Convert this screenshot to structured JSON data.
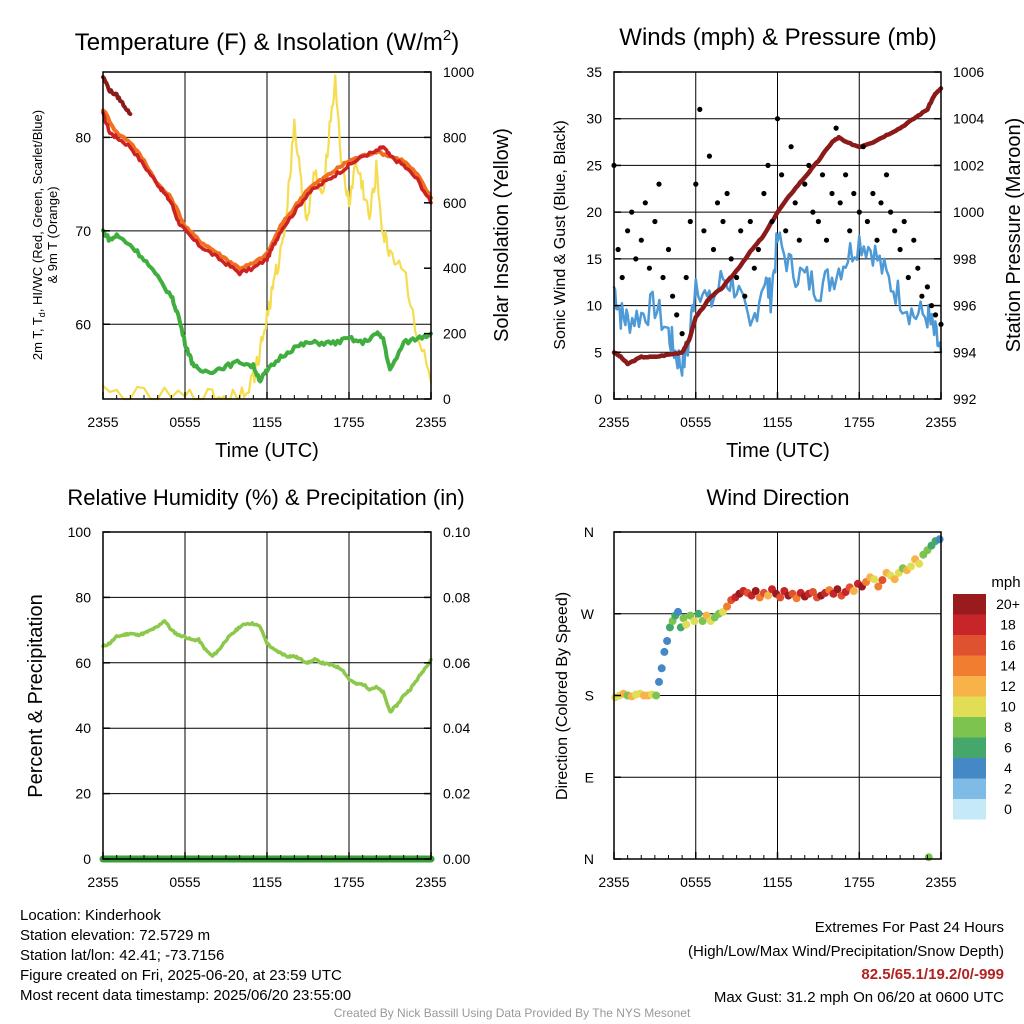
{
  "colors": {
    "maroon": "#8b1a1a",
    "red": "#cc2222",
    "orange": "#f07020",
    "scarlet": "#d83a2a",
    "green": "#3fae3f",
    "yellow": "#f5dc50",
    "blue": "#4e9ad6",
    "black": "#000000",
    "rh": "#8cc84b",
    "precip": "#3a9e3a"
  },
  "panels": {
    "temp": {
      "title_main": "Temperature (F) & Insolation (W/m",
      "title_sup": "2",
      "title_end": ")",
      "ylabel_line1": "2m T, T",
      "ylabel_sub": "d",
      "ylabel_rest": ", HI/WC (Red, Green, Scarlet/Blue)",
      "ylabel_line2": "& 9m T (Orange)",
      "y2label": "Solar Insolation (Yellow)",
      "xlabel": "Time (UTC)"
    },
    "wind": {
      "title": "Winds (mph) & Pressure (mb)",
      "ylabel": "Sonic Wind & Gust (Blue, Black)",
      "y2label": "Station Pressure (Maroon)",
      "xlabel": "Time (UTC)"
    },
    "rh": {
      "title": "Relative Humidity (%) & Precipitation (in)",
      "ylabel": "Percent & Precipitation"
    },
    "wdir": {
      "title": "Wind Direction",
      "ylabel": "Direction (Colored By Speed)",
      "legend_title": "mph"
    }
  },
  "chart_data": [
    {
      "type": "line",
      "title": "Temperature (F) & Insolation (W/m2)",
      "xlabel": "Time (UTC)",
      "ylabel": "2m T, Td, HI/WC (Red, Green, Scarlet/Blue) & 9m T (Orange)",
      "y2label": "Solar Insolation (Yellow)",
      "xticks": [
        "2355",
        "0555",
        "1155",
        "1755",
        "2355"
      ],
      "xlim": [
        0,
        24
      ],
      "ylim": [
        52,
        87
      ],
      "yticks": [
        60,
        70,
        80
      ],
      "y2lim": [
        0,
        1000
      ],
      "y2ticks": [
        0,
        200,
        400,
        600,
        800,
        1000
      ],
      "series": [
        {
          "name": "2m T",
          "color": "#cc2222",
          "axis": "left",
          "x": [
            0,
            0.5,
            1,
            2,
            3,
            4,
            4.5,
            5,
            5.5,
            6,
            7,
            8,
            9,
            10,
            11,
            12,
            12.5,
            13,
            14,
            15,
            16,
            17,
            18,
            19,
            20,
            20.5,
            21,
            22,
            23,
            24
          ],
          "y": [
            82.5,
            80.5,
            80,
            79,
            77,
            75,
            74,
            73,
            71,
            70,
            68.5,
            67.5,
            66.5,
            65.5,
            66,
            67,
            68.5,
            70,
            72,
            74,
            75,
            76,
            77,
            78,
            78.5,
            79,
            78,
            77,
            75.5,
            73
          ]
        },
        {
          "name": "9m T",
          "color": "#f07020",
          "axis": "left",
          "x": [
            0,
            1,
            2,
            3,
            4,
            5,
            6,
            7,
            8,
            9,
            10,
            11,
            12,
            13,
            14,
            15,
            16,
            17,
            18,
            19,
            20,
            21,
            22,
            23,
            24
          ],
          "y": [
            83,
            80.5,
            79.5,
            77.5,
            75,
            73.5,
            70.5,
            69,
            68,
            67,
            66,
            66.5,
            67.5,
            70.5,
            72.5,
            74.5,
            75.5,
            76.5,
            77.5,
            78,
            78.5,
            78,
            77.5,
            76,
            73.5
          ]
        },
        {
          "name": "HI/WC",
          "color": "#8b1a1a",
          "axis": "left",
          "x": [
            0,
            0.5,
            1,
            1.5,
            2
          ],
          "y": [
            86.5,
            85,
            84.5,
            83.5,
            82.5
          ]
        },
        {
          "name": "Td",
          "color": "#3fae3f",
          "axis": "left",
          "x": [
            0,
            0.5,
            1,
            2,
            3,
            4,
            5,
            5.5,
            6,
            6.5,
            7,
            8,
            9,
            10,
            11,
            11.5,
            12,
            13,
            14,
            15,
            16,
            17,
            18,
            19,
            20,
            20.5,
            21,
            22,
            23,
            24
          ],
          "y": [
            70,
            69,
            69.5,
            68.5,
            67,
            65,
            63,
            61,
            58,
            56,
            55,
            55,
            55.5,
            56,
            55.5,
            54,
            55,
            56.5,
            57.5,
            58,
            58,
            58,
            58.5,
            58,
            59,
            58.5,
            55,
            58,
            58.5,
            59
          ]
        },
        {
          "name": "Solar Insolation",
          "color": "#f5dc50",
          "axis": "right",
          "x": [
            0,
            3,
            6,
            8,
            9,
            10,
            11,
            11.5,
            12,
            12.5,
            13,
            13.5,
            14,
            14.5,
            15,
            15.5,
            16,
            16.5,
            17,
            17.5,
            18,
            18.5,
            19,
            19.5,
            20,
            20.5,
            21,
            22,
            23,
            24
          ],
          "y": [
            20,
            5,
            5,
            5,
            5,
            20,
            60,
            150,
            250,
            350,
            450,
            600,
            850,
            650,
            550,
            700,
            600,
            800,
            980,
            700,
            600,
            720,
            650,
            550,
            700,
            500,
            450,
            400,
            200,
            50
          ]
        }
      ]
    },
    {
      "type": "line",
      "title": "Winds (mph) & Pressure (mb)",
      "xlabel": "Time (UTC)",
      "ylabel": "Sonic Wind & Gust (Blue, Black)",
      "y2label": "Station Pressure (Maroon)",
      "xticks": [
        "2355",
        "0555",
        "1155",
        "1755",
        "2355"
      ],
      "xlim": [
        0,
        24
      ],
      "ylim": [
        0,
        35
      ],
      "yticks": [
        0,
        5,
        10,
        15,
        20,
        25,
        30,
        35
      ],
      "y2lim": [
        992,
        1006
      ],
      "y2ticks": [
        992,
        994,
        996,
        998,
        1000,
        1002,
        1004,
        1006
      ],
      "series": [
        {
          "name": "Sonic Wind",
          "color": "#4e9ad6",
          "axis": "left",
          "x": [
            0,
            0.5,
            1,
            2,
            3,
            4,
            4.5,
            5,
            5.5,
            6,
            7,
            8,
            9,
            10,
            11,
            11.5,
            12,
            13,
            14,
            15,
            16,
            17,
            18,
            19,
            20,
            21,
            22,
            23,
            23.5,
            24
          ],
          "y": [
            12,
            9,
            8.5,
            9,
            10,
            7,
            5,
            3.5,
            6,
            13,
            10,
            13,
            12,
            7,
            13,
            11,
            17,
            14,
            13,
            12,
            13,
            15,
            17,
            16,
            13,
            11,
            9,
            9,
            7,
            5
          ]
        },
        {
          "name": "Gust",
          "color": "#000000",
          "axis": "left",
          "x": [
            0,
            0.3,
            0.6,
            1,
            1.3,
            1.6,
            2,
            2.3,
            2.6,
            3,
            3.3,
            3.6,
            4,
            4.3,
            4.6,
            5,
            5.3,
            5.6,
            6,
            6.3,
            6.6,
            7,
            7.3,
            7.6,
            8,
            8.3,
            8.6,
            9,
            9.3,
            9.6,
            10,
            10.3,
            10.6,
            11,
            11.3,
            11.6,
            12,
            12.3,
            12.6,
            13,
            13.3,
            13.6,
            14,
            14.3,
            14.6,
            15,
            15.3,
            15.6,
            16,
            16.3,
            16.6,
            17,
            17.3,
            17.6,
            18,
            18.3,
            18.6,
            19,
            19.3,
            19.6,
            20,
            20.3,
            20.6,
            21,
            21.3,
            21.6,
            22,
            22.3,
            22.6,
            23,
            23.3,
            23.6,
            24
          ],
          "y": [
            25,
            16,
            13,
            18,
            20,
            15,
            17,
            21,
            14,
            19,
            23,
            13,
            16,
            11,
            9,
            7,
            13,
            19,
            23,
            31,
            18,
            26,
            16,
            21,
            19,
            22,
            15,
            13,
            18,
            11,
            19,
            14,
            16,
            22,
            25,
            19,
            30,
            24,
            18,
            27,
            21,
            17,
            23,
            25,
            20,
            19,
            24,
            17,
            22,
            29,
            21,
            24,
            18,
            22,
            20,
            27,
            19,
            22,
            17,
            21,
            24,
            20,
            18,
            16,
            19,
            13,
            17,
            14,
            11,
            12,
            10,
            9,
            8
          ]
        },
        {
          "name": "Station Pressure",
          "color": "#8b1a1a",
          "axis": "right",
          "x": [
            0,
            0.5,
            1,
            2,
            3,
            4,
            5,
            5.5,
            6,
            7,
            8,
            9,
            10,
            11,
            12,
            13,
            14,
            15,
            16,
            16.5,
            17,
            18,
            19,
            20,
            21,
            22,
            23,
            23.5,
            24
          ],
          "y": [
            994,
            993.8,
            993.5,
            993.8,
            993.8,
            993.9,
            994,
            994.5,
            995.5,
            996.3,
            996.8,
            997.5,
            998.3,
            999,
            1000,
            1000.8,
            1001.5,
            1002.2,
            1003,
            1003.2,
            1003,
            1002.8,
            1003,
            1003.3,
            1003.6,
            1004,
            1004.4,
            1005,
            1005.3
          ]
        }
      ]
    },
    {
      "type": "line",
      "title": "Relative Humidity (%) & Precipitation (in)",
      "ylabel": "Percent & Precipitation",
      "xticks": [
        "2355",
        "0555",
        "1155",
        "1755",
        "2355"
      ],
      "xlim": [
        0,
        24
      ],
      "ylim": [
        0,
        100
      ],
      "yticks": [
        0,
        20,
        40,
        60,
        80,
        100
      ],
      "y2lim": [
        0,
        0.1
      ],
      "y2ticks": [
        "0.00",
        "0.02",
        "0.04",
        "0.06",
        "0.08",
        "0.10"
      ],
      "series": [
        {
          "name": "Relative Humidity",
          "color": "#8cc84b",
          "axis": "left",
          "x": [
            0,
            0.5,
            1,
            1.5,
            2,
            2.5,
            3,
            3.5,
            4,
            4.5,
            5,
            5.5,
            6,
            6.5,
            7,
            7.5,
            8,
            8.5,
            9,
            9.5,
            10,
            10.5,
            11,
            11.5,
            12,
            12.5,
            13,
            13.5,
            14,
            14.5,
            15,
            15.5,
            16,
            16.5,
            17,
            17.5,
            18,
            18.5,
            19,
            19.5,
            20,
            20.5,
            21,
            21.5,
            22,
            22.5,
            23,
            23.5,
            24
          ],
          "y": [
            65,
            66,
            68,
            68.5,
            69,
            68.5,
            69,
            70,
            71,
            73,
            70,
            68.5,
            68,
            67,
            67,
            64,
            62,
            64,
            67,
            69,
            71,
            72,
            72,
            71,
            66,
            64,
            63,
            62,
            62,
            61,
            60,
            61,
            60,
            59.5,
            59,
            58,
            55,
            53.5,
            53.5,
            52,
            52.5,
            51,
            45,
            47,
            50,
            52,
            55,
            58,
            61
          ]
        },
        {
          "name": "Precipitation",
          "color": "#3a9e3a",
          "axis": "right",
          "x": [
            0,
            24
          ],
          "y": [
            0,
            0
          ]
        }
      ]
    },
    {
      "type": "scatter",
      "title": "Wind Direction",
      "ylabel": "Direction (Colored By Speed)",
      "xticks": [
        "2355",
        "0555",
        "1155",
        "1755",
        "2355"
      ],
      "xlim": [
        0,
        24
      ],
      "yticks": [
        "N",
        "E",
        "S",
        "W",
        "N"
      ],
      "ylim": [
        0,
        360
      ],
      "legend": {
        "title": "mph",
        "labels": [
          "20+",
          "18",
          "16",
          "14",
          "12",
          "10",
          "8",
          "6",
          "4",
          "2",
          "0"
        ]
      },
      "x": [
        0.1,
        0.4,
        0.7,
        1.0,
        1.3,
        1.6,
        1.9,
        2.2,
        2.5,
        2.8,
        3.1,
        3.3,
        3.5,
        3.7,
        3.9,
        4.1,
        4.3,
        4.5,
        4.7,
        4.9,
        5.1,
        5.3,
        5.6,
        5.9,
        6.2,
        6.5,
        6.8,
        7.1,
        7.4,
        7.7,
        8.0,
        8.3,
        8.6,
        8.9,
        9.2,
        9.5,
        9.8,
        10.1,
        10.4,
        10.7,
        11.0,
        11.3,
        11.6,
        11.9,
        12.2,
        12.5,
        12.8,
        13.1,
        13.4,
        13.7,
        14.0,
        14.3,
        14.6,
        14.9,
        15.2,
        15.5,
        15.8,
        16.1,
        16.4,
        16.7,
        17.0,
        17.3,
        17.6,
        17.9,
        18.2,
        18.5,
        18.8,
        19.1,
        19.4,
        19.7,
        20.0,
        20.3,
        20.6,
        20.9,
        21.2,
        21.5,
        21.8,
        22.1,
        22.4,
        22.7,
        23.0,
        23.3,
        23.6,
        23.9,
        23.1
      ],
      "y": [
        178,
        180,
        182,
        180,
        179,
        181,
        182,
        180,
        180,
        181,
        180,
        195,
        210,
        228,
        240,
        255,
        262,
        268,
        272,
        255,
        265,
        258,
        268,
        262,
        270,
        262,
        268,
        262,
        266,
        270,
        272,
        278,
        285,
        288,
        292,
        295,
        293,
        290,
        295,
        288,
        293,
        290,
        297,
        292,
        288,
        295,
        290,
        292,
        287,
        293,
        289,
        292,
        294,
        288,
        290,
        293,
        296,
        292,
        297,
        290,
        294,
        299,
        295,
        303,
        300,
        305,
        310,
        308,
        300,
        307,
        315,
        312,
        308,
        315,
        320,
        318,
        322,
        330,
        325,
        335,
        340,
        345,
        350,
        352,
        2
      ],
      "speed": [
        9,
        10,
        11,
        8,
        12,
        9,
        10,
        11,
        12,
        9,
        8,
        4,
        3,
        4,
        3,
        6,
        7,
        5,
        4,
        6,
        8,
        9,
        7,
        10,
        6,
        8,
        12,
        9,
        8,
        7,
        10,
        13,
        16,
        18,
        20,
        17,
        15,
        18,
        19,
        14,
        16,
        12,
        18,
        20,
        15,
        17,
        19,
        16,
        14,
        18,
        20,
        17,
        15,
        16,
        19,
        18,
        14,
        17,
        20,
        16,
        18,
        15,
        12,
        17,
        19,
        14,
        12,
        10,
        13,
        15,
        11,
        9,
        12,
        10,
        8,
        11,
        9,
        12,
        10,
        7,
        8,
        6,
        5,
        4,
        7
      ]
    }
  ],
  "footer": {
    "location": "Location: Kinderhook",
    "elevation": "Station elevation: 72.5729 m",
    "latlon": "Station lat/lon: 42.41; -73.7156",
    "created": "Figure created on Fri, 2025-06-20, at 23:59 UTC",
    "recent": "Most recent data timestamp: 2025/06/20 23:55:00",
    "extremes_title": "Extremes For Past 24 Hours",
    "extremes_sub": "(High/Low/Max Wind/Precipitation/Snow Depth)",
    "extremes_values": "82.5/65.1/19.2/0/-999",
    "max_gust": "Max Gust: 31.2 mph On 06/20 at 0600 UTC",
    "credit": "Created By Nick Bassill Using Data Provided By The NYS Mesonet"
  }
}
